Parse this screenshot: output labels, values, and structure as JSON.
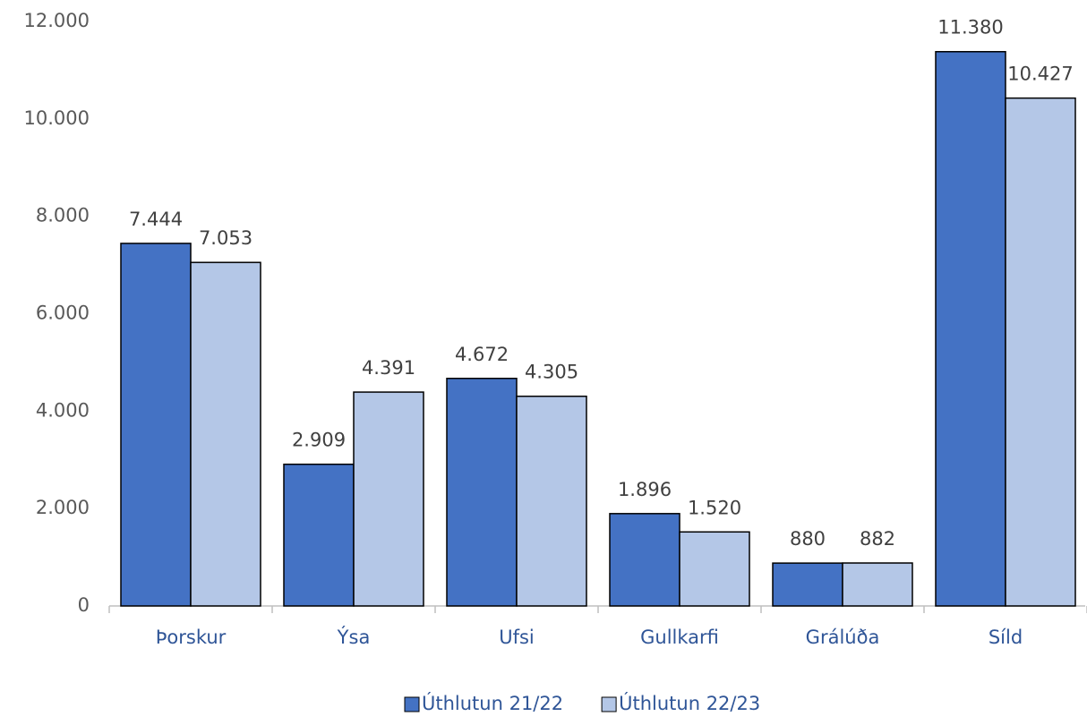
{
  "chart_data": {
    "type": "bar",
    "categories": [
      "Þorskur",
      "Ýsa",
      "Ufsi",
      "Gullkarfi",
      "Grálúða",
      "Síld"
    ],
    "series": [
      {
        "name": "Úthlutun 21/22",
        "color": "#4472c4",
        "values": [
          7444,
          2909,
          4672,
          1896,
          880,
          11380
        ],
        "value_labels": [
          "7.444",
          "2.909",
          "4.672",
          "1.896",
          "880",
          "11.380"
        ]
      },
      {
        "name": "Úthlutun 22/23",
        "color": "#b4c7e7",
        "values": [
          7053,
          4391,
          4305,
          1520,
          882,
          10427
        ],
        "value_labels": [
          "7.053",
          "4.391",
          "4.305",
          "1.520",
          "882",
          "10.427"
        ]
      }
    ],
    "ylim": [
      0,
      12000
    ],
    "yticks": [
      0,
      {
        "value": 2000,
        "label": "2.000"
      },
      {
        "value": 4000,
        "label": "4.000"
      },
      {
        "value": 6000,
        "label": "6.000"
      },
      {
        "value": 8000,
        "label": "8.000"
      },
      {
        "value": 10000,
        "label": "10.000"
      },
      {
        "value": 12000,
        "label": "12.000"
      }
    ],
    "grid": false,
    "legend": "bottom"
  }
}
